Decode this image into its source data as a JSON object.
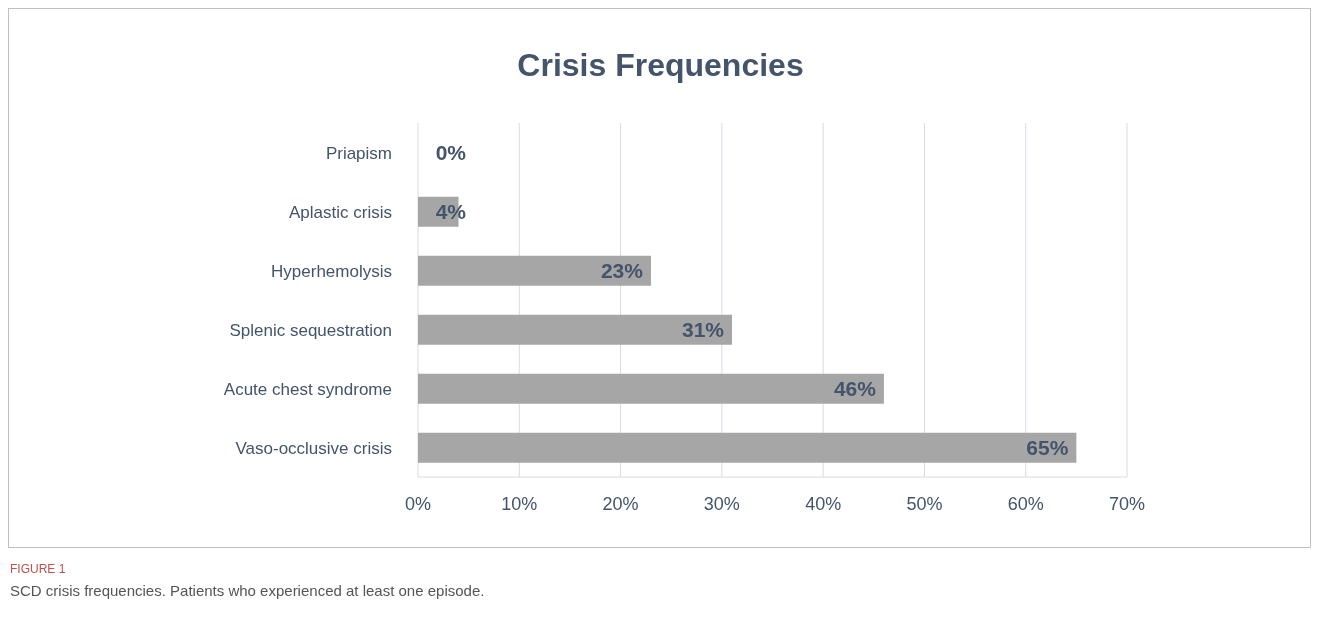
{
  "chart_data": {
    "type": "bar",
    "orientation": "horizontal",
    "title": "Crisis Frequencies",
    "categories": [
      "Priapism",
      "Aplastic crisis",
      "Hyperhemolysis",
      "Splenic sequestration",
      "Acute chest syndrome",
      "Vaso-occlusive crisis"
    ],
    "values": [
      0,
      4,
      23,
      31,
      46,
      65
    ],
    "value_labels": [
      "0%",
      "4%",
      "23%",
      "31%",
      "46%",
      "65%"
    ],
    "color": "#a6a6a6",
    "xlim": [
      0,
      70
    ],
    "xticks": [
      {
        "value": 0,
        "label": "0%"
      },
      {
        "value": 10,
        "label": "10%"
      },
      {
        "value": 20,
        "label": "20%"
      },
      {
        "value": 30,
        "label": "30%"
      },
      {
        "value": 40,
        "label": "40%"
      },
      {
        "value": 50,
        "label": "50%"
      },
      {
        "value": 60,
        "label": "60%"
      },
      {
        "value": 70,
        "label": "70%"
      }
    ],
    "grid": "x",
    "legend": false,
    "annotations": [
      "FIGURE 1",
      "SCD crisis frequencies. Patients who experienced at least one episode."
    ]
  }
}
